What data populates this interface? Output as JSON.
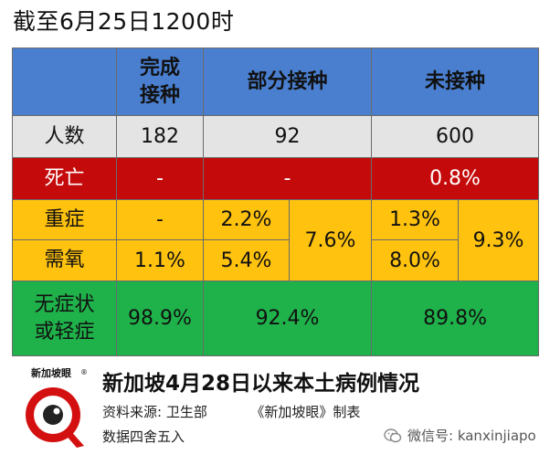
{
  "title": "截至6月25日1200时",
  "chart_data": {
    "type": "table",
    "columns": [
      "",
      "完成接种",
      "部分接种",
      "未接种"
    ],
    "rows": [
      {
        "label": "人数",
        "values": [
          "182",
          "92",
          "600"
        ]
      },
      {
        "label": "死亡",
        "values": [
          "-",
          "-",
          "0.8%"
        ]
      },
      {
        "label": "重症",
        "values": [
          "-",
          "2.2%",
          "1.3%"
        ]
      },
      {
        "label": "需氧",
        "values": [
          "1.1%",
          "5.4%",
          "8.0%"
        ]
      },
      {
        "label": "无症状或轻症",
        "values": [
          "98.9%",
          "92.4%",
          "89.8%"
        ]
      }
    ],
    "merged": {
      "partial_severe_plus_oxygen": "7.6%",
      "unvaccinated_severe_plus_oxygen": "9.3%"
    },
    "header_lines": {
      "full": [
        "完成",
        "接种"
      ],
      "partial": "部分接种",
      "unvax": "未接种"
    },
    "label_lines": {
      "mild": [
        "无症状",
        "或轻症"
      ]
    }
  },
  "footer": {
    "logo_text": "新加坡眼",
    "logo_mark": "®",
    "title": "新加坡4月28日以来本土病例情况",
    "source_label": "资料来源:",
    "source_value": "卫生部",
    "maker": "《新加坡眼》制表",
    "note": "数据四舍五入",
    "wechat": "微信号: kanxinjiapo"
  },
  "colors": {
    "header": "#4a7fd0",
    "grey": "#e4e4e4",
    "red": "#c40a0a",
    "amber": "#ffc20e",
    "green": "#1fb14a"
  }
}
